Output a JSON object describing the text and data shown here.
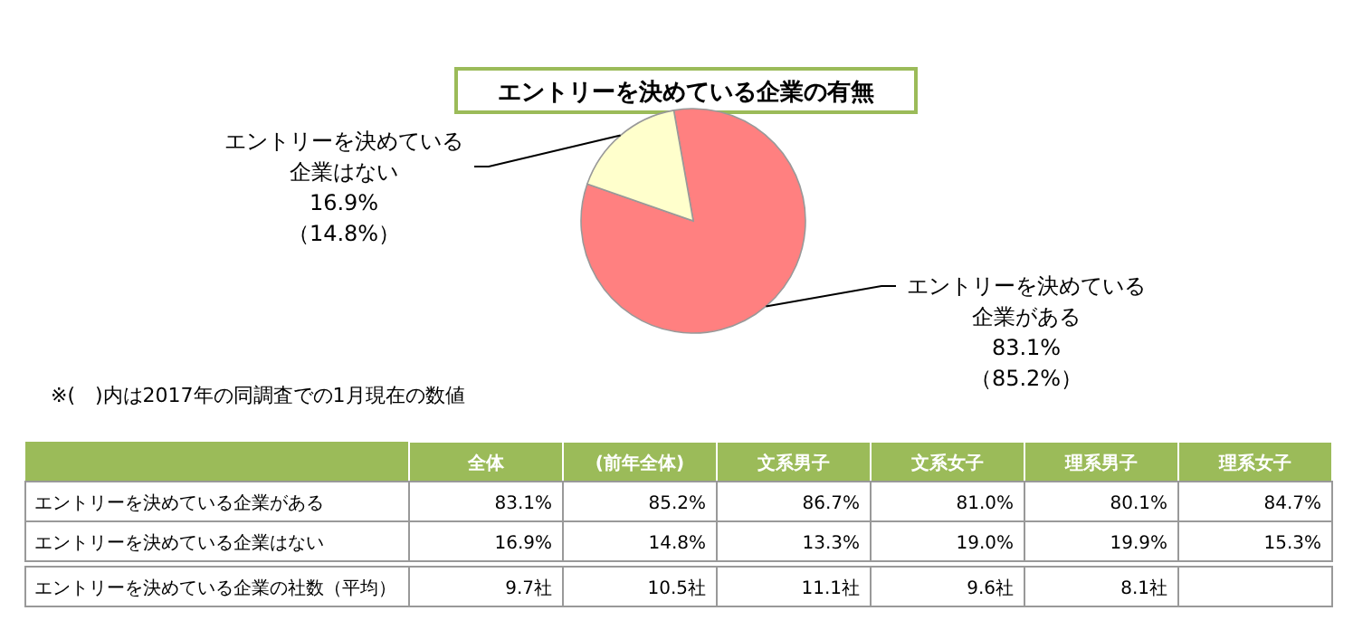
{
  "chart_data": [
    {
      "type": "pie",
      "title": "エントリーを決めている企業の有無",
      "categories": [
        "エントリーを決めている企業がある",
        "エントリーを決めている企業はない"
      ],
      "values": [
        83.1,
        16.9
      ],
      "colors": [
        "#ff8080",
        "#ffffcc"
      ],
      "value_labels": [
        "83.1%",
        "16.9%"
      ],
      "annotations": [
        {
          "text": "（85.2%）",
          "x": "エントリーを決めている企業がある"
        },
        {
          "text": "（14.8%）",
          "x": "エントリーを決めている企業はない"
        },
        "※(　)内は2017年の同調査での1月現在の数値"
      ]
    },
    {
      "type": "heatmap",
      "categories": [
        "全体",
        "(前年全体)",
        "文系男子",
        "文系女子",
        "理系男子",
        "理系女子"
      ],
      "y_categories": [
        "エントリーを決めている企業がある",
        "エントリーを決めている企業はない",
        "エントリーを決めている企業の社数（平均）"
      ],
      "cells": [
        [
          83.1,
          85.2,
          86.7,
          81.0,
          80.1,
          84.7
        ],
        [
          16.9,
          14.8,
          13.3,
          19.0,
          19.9,
          15.3
        ],
        [
          9.7,
          10.5,
          11.1,
          9.6,
          8.1,
          null
        ]
      ],
      "cell_labels": [
        [
          "83.1%",
          "85.2%",
          "86.7%",
          "81.0%",
          "80.1%",
          "84.7%"
        ],
        [
          "16.9%",
          "14.8%",
          "13.3%",
          "19.0%",
          "19.9%",
          "15.3%"
        ],
        [
          "9.7社",
          "10.5社",
          "11.1社",
          "9.6社",
          "8.1社",
          null
        ]
      ]
    }
  ]
}
